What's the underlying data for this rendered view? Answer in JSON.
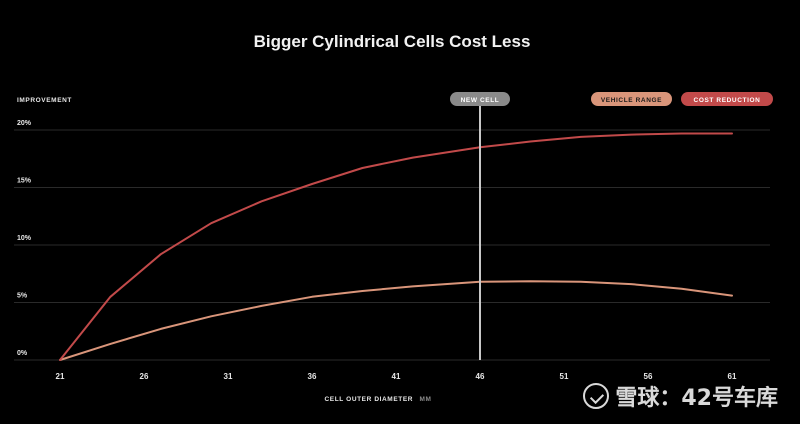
{
  "colors": {
    "background": "#000000",
    "grid": "#2a2a2a",
    "text": "#e8e8e8",
    "vehicle_range": "#d9957a",
    "cost_reduction": "#c24a4a",
    "new_cell_line": "#c8c8c8",
    "new_cell_badge": "#8a8a8a"
  },
  "chart_data": {
    "type": "line",
    "title": "Bigger Cylindrical Cells Cost Less",
    "ylabel": "IMPROVEMENT",
    "xlabel": "CELL OUTER DIAMETER",
    "xlabel_unit": "MM",
    "x_ticks": [
      21,
      26,
      31,
      36,
      41,
      46,
      51,
      56,
      61
    ],
    "y_ticks": [
      0,
      5,
      10,
      15,
      20
    ],
    "y_tick_labels": [
      "0%",
      "5%",
      "10%",
      "15%",
      "20%"
    ],
    "xlim": [
      21,
      61
    ],
    "ylim": [
      0,
      20
    ],
    "grid": true,
    "legend_position": "top-right",
    "annotation": {
      "label": "NEW CELL",
      "x": 46
    },
    "series": [
      {
        "name": "VEHICLE RANGE",
        "color_key": "vehicle_range",
        "x": [
          21,
          24,
          27,
          30,
          33,
          36,
          39,
          42,
          46,
          49,
          52,
          55,
          58,
          61
        ],
        "y": [
          0,
          1.4,
          2.7,
          3.8,
          4.7,
          5.5,
          6.0,
          6.4,
          6.8,
          6.85,
          6.8,
          6.6,
          6.2,
          5.6
        ]
      },
      {
        "name": "COST REDUCTION",
        "color_key": "cost_reduction",
        "x": [
          21,
          24,
          27,
          30,
          33,
          36,
          39,
          42,
          46,
          49,
          52,
          55,
          58,
          61
        ],
        "y": [
          0,
          5.5,
          9.2,
          11.9,
          13.8,
          15.3,
          16.7,
          17.6,
          18.5,
          19.0,
          19.4,
          19.6,
          19.7,
          19.7
        ]
      }
    ]
  },
  "watermark": {
    "text": "雪球：42号车库"
  }
}
